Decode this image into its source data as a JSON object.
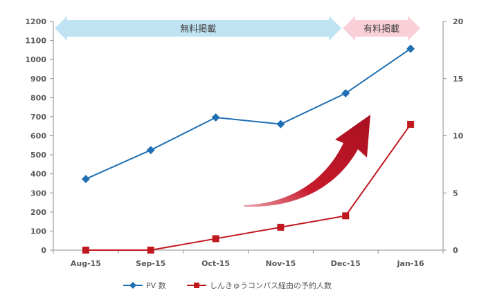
{
  "chart_data": {
    "type": "line",
    "categories": [
      "Aug-15",
      "Sep-15",
      "Oct-15",
      "Nov-15",
      "Dec-15",
      "Jan-16"
    ],
    "series": [
      {
        "name": "PV 数",
        "axis": "left",
        "color": "#1f6fb4",
        "marker": "diamond",
        "values": [
          373,
          525,
          696,
          661,
          823,
          1057
        ]
      },
      {
        "name": "しんきゅうコンパス経由の予約人数",
        "axis": "right",
        "color": "#c0181f",
        "marker": "square",
        "values": [
          0,
          0,
          1,
          2,
          3,
          11
        ]
      }
    ],
    "y_left": {
      "ylim": [
        0,
        1200
      ],
      "ticks": [
        "0",
        "100",
        "200",
        "300",
        "400",
        "500",
        "600",
        "700",
        "800",
        "900",
        "1000",
        "1100",
        "1200"
      ]
    },
    "y_right": {
      "ylim": [
        0,
        20
      ],
      "ticks": [
        "0",
        "5",
        "10",
        "15",
        "20"
      ]
    },
    "grid": false,
    "legend_position": "bottom",
    "annotations": {
      "free_period": {
        "label": "無料掲載",
        "from": "Aug-15",
        "to": "Dec-15",
        "color": "#bfe3f2"
      },
      "paid_period": {
        "label": "有料掲載",
        "from": "Dec-15",
        "to": "Jan-16",
        "color": "#f9d0d8"
      },
      "growth_arrow": {
        "icon": "curved-up-arrow",
        "color": "#c0182a"
      }
    }
  }
}
